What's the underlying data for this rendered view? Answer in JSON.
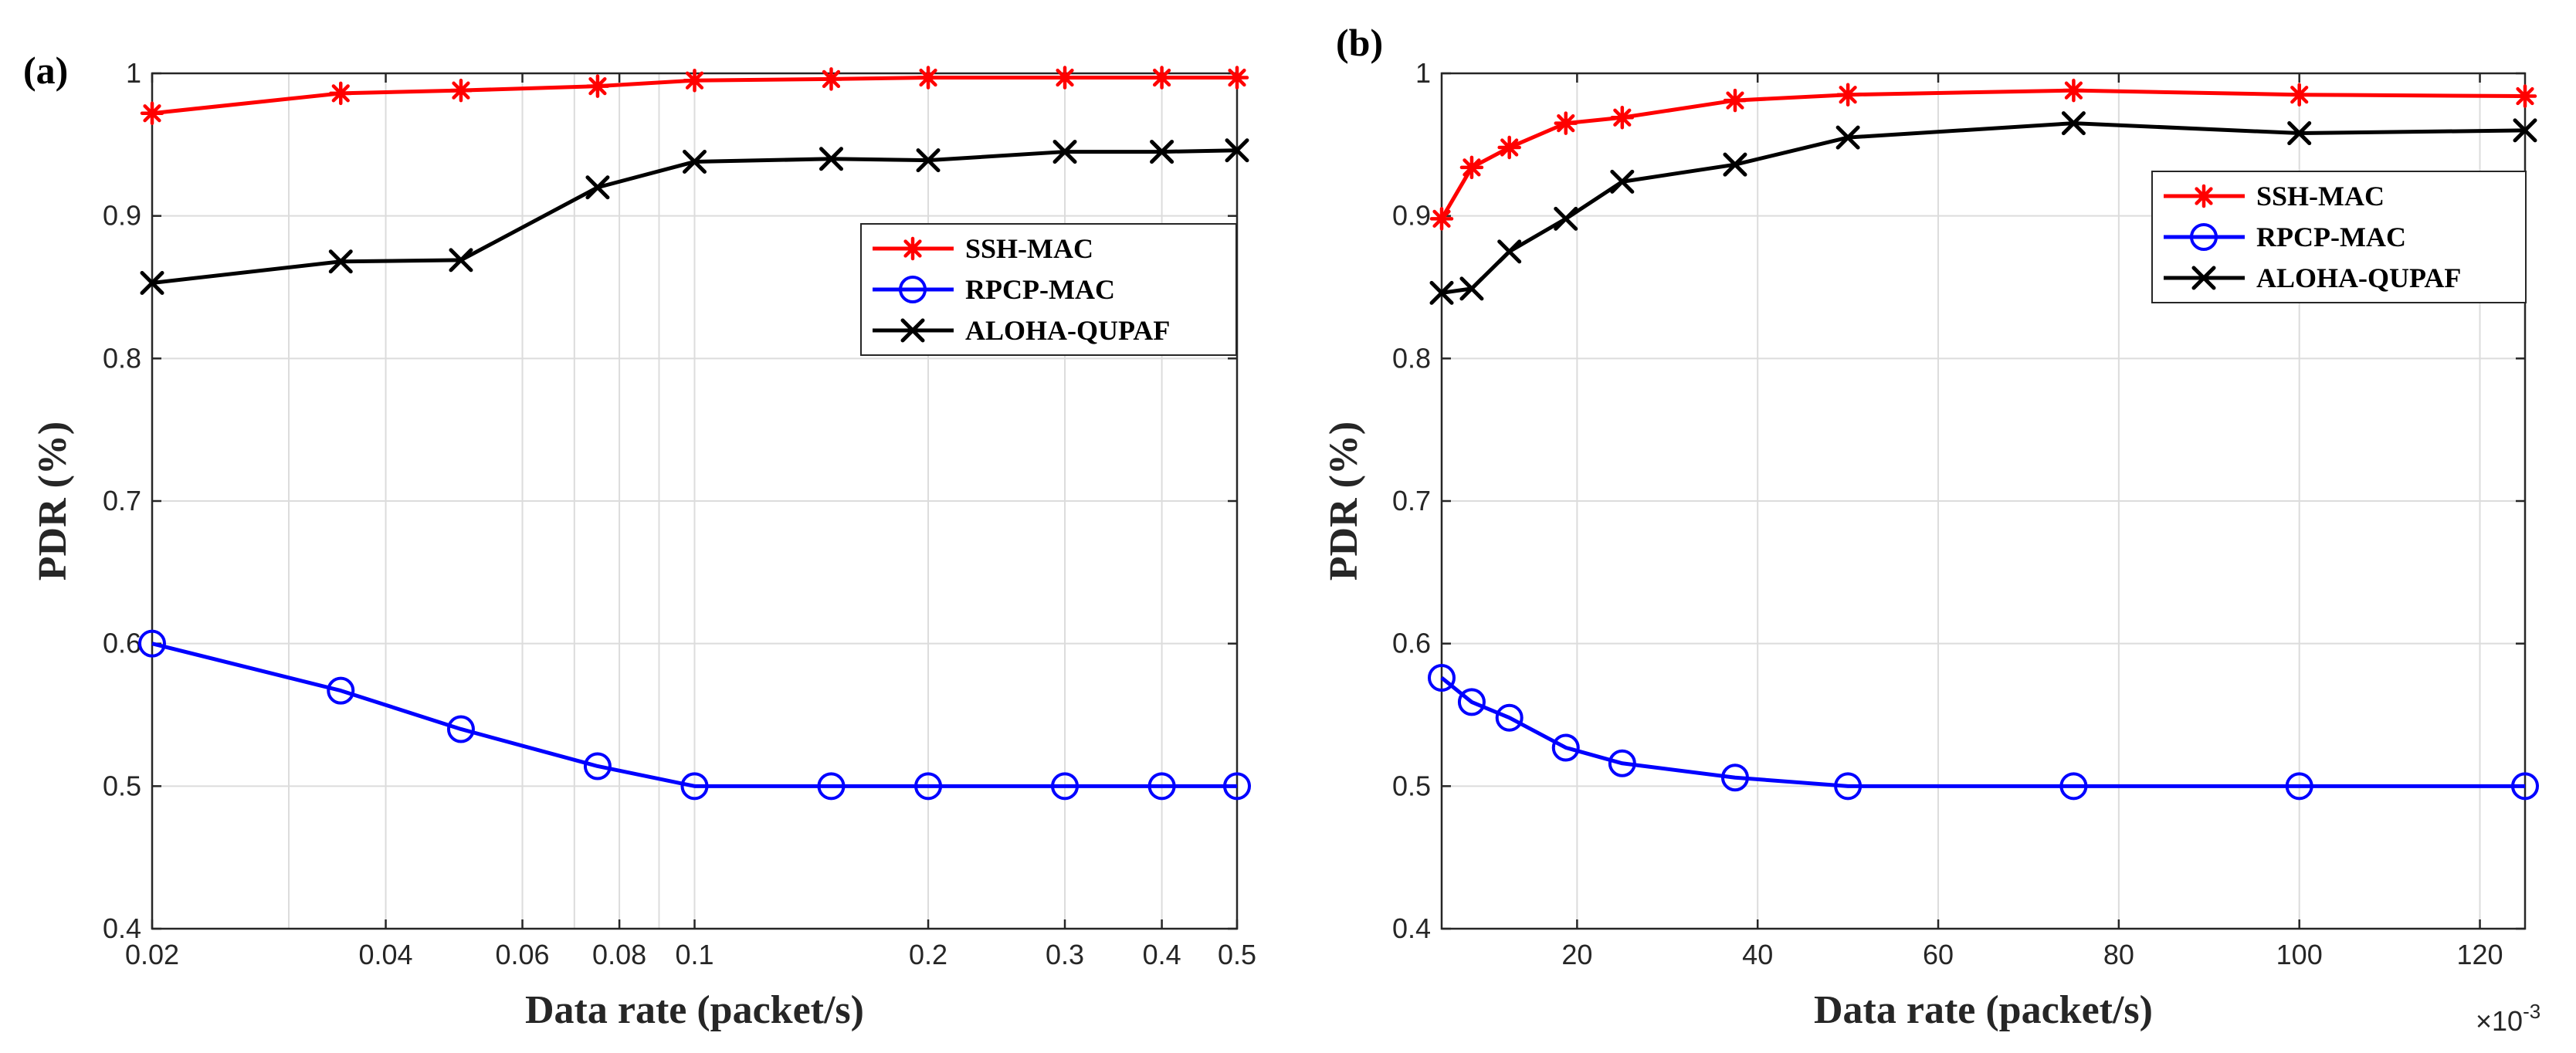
{
  "chart_data": [
    {
      "panel": "(a)",
      "type": "line",
      "xscale": "log",
      "xlim": [
        0.02,
        0.5
      ],
      "ylim": [
        0.4,
        1
      ],
      "xlabel": "Data rate (packet/s)",
      "ylabel": "PDR (%)",
      "x_ticks": [
        0.02,
        0.04,
        0.06,
        0.08,
        0.1,
        0.2,
        0.3,
        0.4,
        0.5
      ],
      "x_tick_labels": [
        "0.02",
        "0.04",
        "0.06",
        "0.08",
        "0.1",
        "0.2",
        "0.3",
        "0.4",
        "0.5"
      ],
      "x_minor_grid": [
        0.03,
        0.07,
        0.09
      ],
      "y_ticks": [
        0.4,
        0.5,
        0.6,
        0.7,
        0.8,
        0.9,
        1
      ],
      "y_tick_labels": [
        "0.4",
        "0.5",
        "0.6",
        "0.7",
        "0.8",
        "0.9",
        "1"
      ],
      "grid": true,
      "legend_position": "upper-right",
      "x": [
        0.02,
        0.035,
        0.05,
        0.075,
        0.1,
        0.15,
        0.2,
        0.3,
        0.4,
        0.5
      ],
      "series": [
        {
          "name": "SSH-MAC",
          "color": "#ff0000",
          "marker": "asterisk",
          "values": [
            0.972,
            0.986,
            0.988,
            0.991,
            0.995,
            0.996,
            0.997,
            0.997,
            0.997,
            0.997
          ]
        },
        {
          "name": "RPCP-MAC",
          "color": "#0000ff",
          "marker": "circle",
          "values": [
            0.6,
            0.567,
            0.54,
            0.514,
            0.5,
            0.5,
            0.5,
            0.5,
            0.5,
            0.5
          ]
        },
        {
          "name": "ALOHA-QUPAF",
          "color": "#000000",
          "marker": "x",
          "values": [
            0.853,
            0.868,
            0.869,
            0.92,
            0.938,
            0.94,
            0.939,
            0.945,
            0.945,
            0.946
          ]
        }
      ]
    },
    {
      "panel": "(b)",
      "type": "line",
      "xscale": "linear",
      "xlim": [
        5,
        125
      ],
      "ylim": [
        0.4,
        1
      ],
      "xlabel": "Data rate (packet/s)",
      "ylabel": "PDR (%)",
      "x_exponent_label": "×10",
      "x_exponent_power": "-3",
      "x_ticks": [
        20,
        40,
        60,
        80,
        100,
        120
      ],
      "x_tick_labels": [
        "20",
        "40",
        "60",
        "80",
        "100",
        "120"
      ],
      "y_ticks": [
        0.4,
        0.5,
        0.6,
        0.7,
        0.8,
        0.9,
        1
      ],
      "y_tick_labels": [
        "0.4",
        "0.5",
        "0.6",
        "0.7",
        "0.8",
        "0.9",
        "1"
      ],
      "grid": true,
      "legend_position": "upper-right",
      "x": [
        5,
        8.33,
        12.5,
        18.75,
        25,
        37.5,
        50,
        75,
        100,
        125
      ],
      "series": [
        {
          "name": "SSH-MAC",
          "color": "#ff0000",
          "marker": "asterisk",
          "values": [
            0.898,
            0.934,
            0.948,
            0.965,
            0.969,
            0.981,
            0.985,
            0.988,
            0.985,
            0.984
          ]
        },
        {
          "name": "RPCP-MAC",
          "color": "#0000ff",
          "marker": "circle",
          "values": [
            0.576,
            0.559,
            0.548,
            0.527,
            0.516,
            0.506,
            0.5,
            0.5,
            0.5,
            0.5
          ]
        },
        {
          "name": "ALOHA-QUPAF",
          "color": "#000000",
          "marker": "x",
          "values": [
            0.846,
            0.849,
            0.875,
            0.898,
            0.924,
            0.936,
            0.955,
            0.965,
            0.958,
            0.96
          ]
        }
      ]
    }
  ]
}
